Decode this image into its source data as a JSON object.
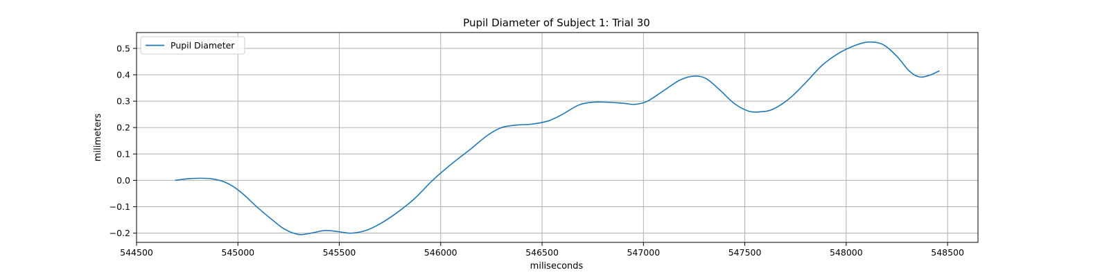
{
  "chart_data": {
    "type": "line",
    "title": "Pupil Diameter of Subject 1: Trial 30",
    "xlabel": "miliseconds",
    "ylabel": "milimeters",
    "xlim": [
      544500,
      548650
    ],
    "ylim": [
      -0.235,
      0.56
    ],
    "xticks": [
      544500,
      545000,
      545500,
      546000,
      546500,
      547000,
      547500,
      548000,
      548500
    ],
    "yticks": [
      -0.2,
      -0.1,
      0.0,
      0.1,
      0.2,
      0.3,
      0.4,
      0.5
    ],
    "ytick_labels": [
      "−0.2",
      "−0.1",
      "0.0",
      "0.1",
      "0.2",
      "0.3",
      "0.4",
      "0.5"
    ],
    "grid": true,
    "legend_position": "top-left",
    "series": [
      {
        "name": "Pupil Diameter",
        "color": "#1f77b4",
        "points": [
          [
            544690,
            0.0
          ],
          [
            544750,
            0.006
          ],
          [
            544810,
            0.008
          ],
          [
            544870,
            0.006
          ],
          [
            544930,
            -0.005
          ],
          [
            544980,
            -0.025
          ],
          [
            545030,
            -0.055
          ],
          [
            545100,
            -0.105
          ],
          [
            545170,
            -0.15
          ],
          [
            545230,
            -0.185
          ],
          [
            545300,
            -0.205
          ],
          [
            545360,
            -0.2
          ],
          [
            545430,
            -0.19
          ],
          [
            545500,
            -0.195
          ],
          [
            545560,
            -0.2
          ],
          [
            545630,
            -0.19
          ],
          [
            545700,
            -0.165
          ],
          [
            545780,
            -0.125
          ],
          [
            545870,
            -0.07
          ],
          [
            545960,
            0.0
          ],
          [
            546050,
            0.06
          ],
          [
            546150,
            0.12
          ],
          [
            546230,
            0.17
          ],
          [
            546300,
            0.2
          ],
          [
            546380,
            0.21
          ],
          [
            546450,
            0.213
          ],
          [
            546530,
            0.225
          ],
          [
            546600,
            0.25
          ],
          [
            546680,
            0.285
          ],
          [
            546750,
            0.296
          ],
          [
            546820,
            0.296
          ],
          [
            546900,
            0.292
          ],
          [
            546960,
            0.288
          ],
          [
            547020,
            0.3
          ],
          [
            547100,
            0.34
          ],
          [
            547180,
            0.38
          ],
          [
            547250,
            0.395
          ],
          [
            547310,
            0.385
          ],
          [
            547380,
            0.34
          ],
          [
            547450,
            0.29
          ],
          [
            547520,
            0.262
          ],
          [
            547580,
            0.26
          ],
          [
            547640,
            0.27
          ],
          [
            547720,
            0.31
          ],
          [
            547800,
            0.37
          ],
          [
            547880,
            0.435
          ],
          [
            547960,
            0.48
          ],
          [
            548040,
            0.51
          ],
          [
            548110,
            0.524
          ],
          [
            548180,
            0.515
          ],
          [
            548250,
            0.47
          ],
          [
            548310,
            0.415
          ],
          [
            548360,
            0.392
          ],
          [
            548410,
            0.398
          ],
          [
            548460,
            0.415
          ]
        ]
      }
    ]
  }
}
